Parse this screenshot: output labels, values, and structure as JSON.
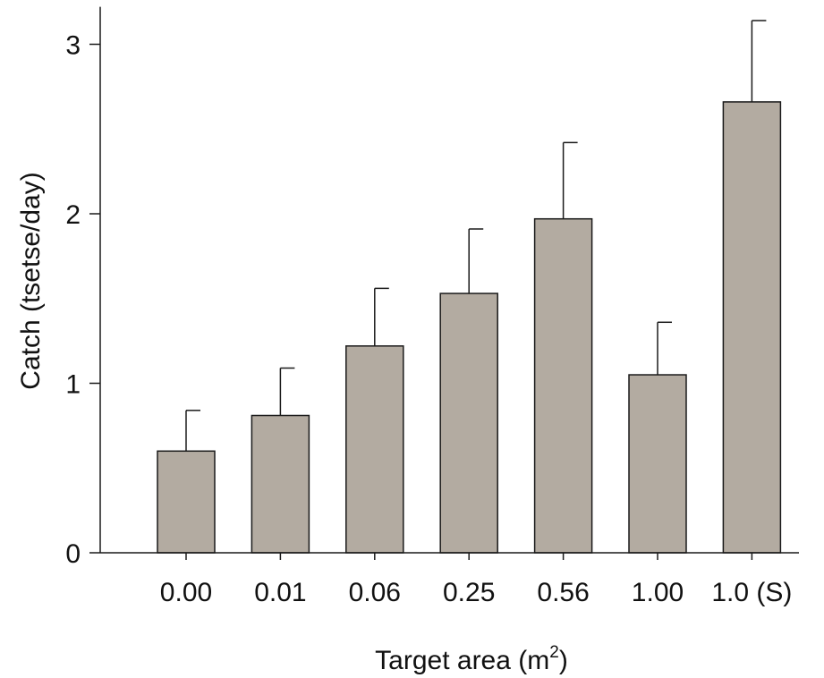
{
  "chart_data": {
    "type": "bar",
    "categories": [
      "0.00",
      "0.01",
      "0.06",
      "0.25",
      "0.56",
      "1.00",
      "1.0 (S)"
    ],
    "values": [
      0.6,
      0.81,
      1.22,
      1.53,
      1.97,
      1.05,
      2.66
    ],
    "error_upper": [
      0.84,
      1.09,
      1.56,
      1.91,
      2.42,
      1.36,
      3.14
    ],
    "xlabel_main": "Target area (m",
    "xlabel_sup": "2",
    "xlabel_end": ")",
    "ylabel": "Catch (tsetse/day)",
    "ylim": [
      0,
      3.2
    ],
    "yticks": [
      0,
      1,
      2,
      3
    ],
    "ytick_labels": [
      "0",
      "1",
      "2",
      "3"
    ],
    "grid": false,
    "colors": {
      "bar_fill": "#b3aba1",
      "bar_stroke": "#1a1a1a",
      "axis": "#1a1a1a"
    }
  }
}
